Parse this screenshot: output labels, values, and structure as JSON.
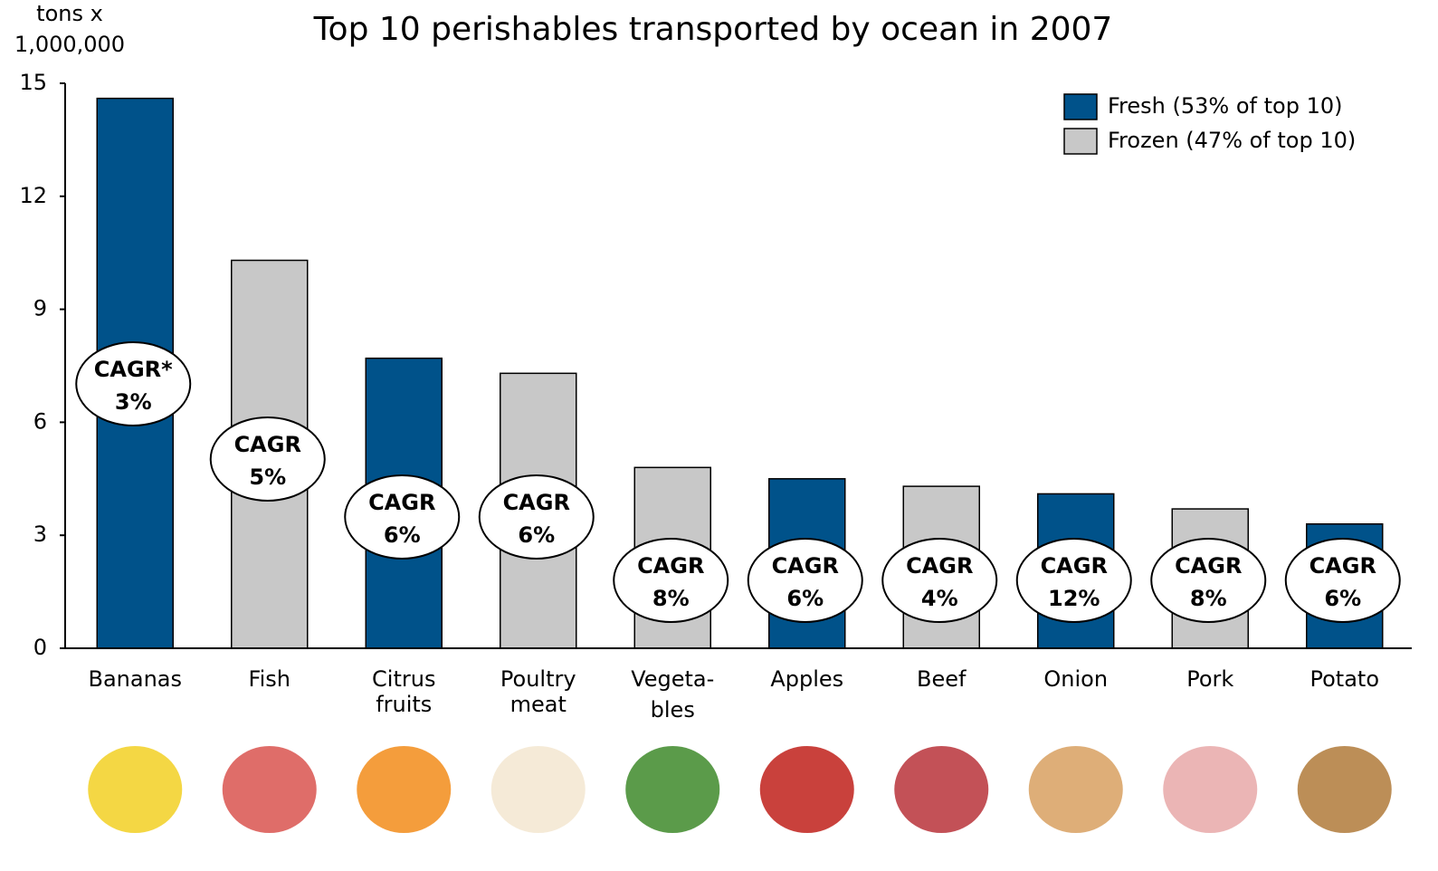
{
  "chart_data": {
    "type": "bar",
    "title": "Top 10 perishables transported by ocean in 2007",
    "y_label": [
      "tons x",
      "1,000,000"
    ],
    "categories": [
      [
        "Bananas"
      ],
      [
        "Fish"
      ],
      [
        "Citrus",
        "fruits"
      ],
      [
        "Poultry",
        "meat"
      ],
      [
        "Vegeta-",
        "bles"
      ],
      [
        "Apples"
      ],
      [
        "Beef"
      ],
      [
        "Onion"
      ],
      [
        "Pork"
      ],
      [
        "Potato"
      ]
    ],
    "series": [
      {
        "name": "Fresh (53% of top 10)",
        "color": "#00528a",
        "values": [
          14.6,
          null,
          7.7,
          null,
          null,
          4.5,
          null,
          4.1,
          null,
          3.3
        ]
      },
      {
        "name": "Frozen (47% of top 10)",
        "color": "#c8c8c8",
        "values": [
          null,
          10.3,
          null,
          7.3,
          4.8,
          null,
          4.3,
          null,
          3.7,
          null
        ]
      }
    ],
    "cagr": [
      [
        "CAGR*",
        "3%"
      ],
      [
        "CAGR",
        "5%"
      ],
      [
        "CAGR",
        "6%"
      ],
      [
        "CAGR",
        "6%"
      ],
      [
        "CAGR",
        "8%"
      ],
      [
        "CAGR",
        "6%"
      ],
      [
        "CAGR",
        "4%"
      ],
      [
        "CAGR",
        "12%"
      ],
      [
        "CAGR",
        "8%"
      ],
      [
        "CAGR",
        "6%"
      ]
    ],
    "ylim": [
      0,
      15
    ],
    "yticks": [
      0,
      3,
      6,
      9,
      12,
      15
    ],
    "legend": "top-right"
  }
}
